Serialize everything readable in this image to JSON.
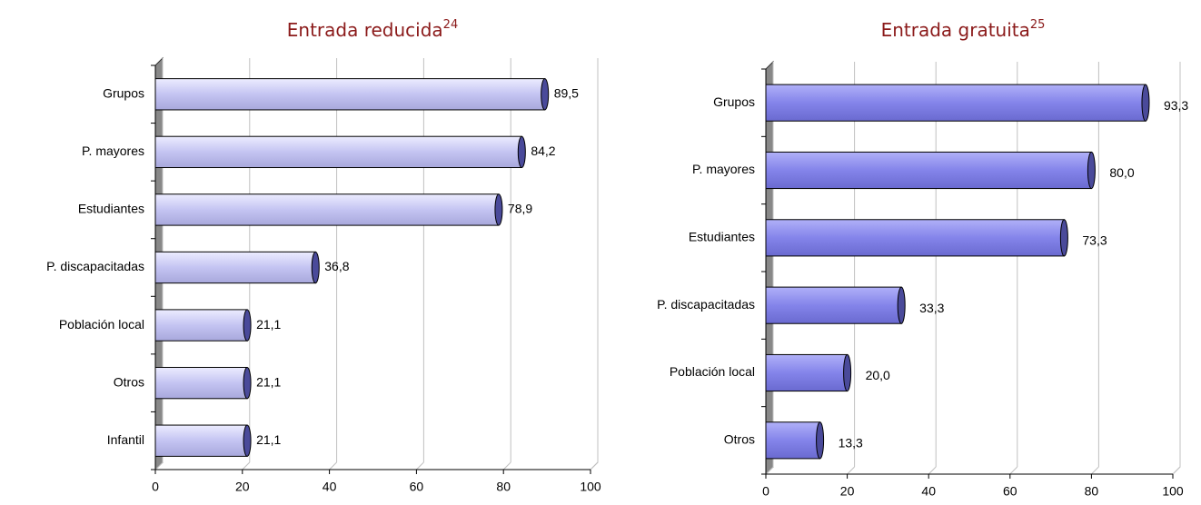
{
  "chart_data": [
    {
      "type": "bar",
      "title": "Entrada reducida",
      "title_superscript": "24",
      "categories": [
        "Grupos",
        "P. mayores",
        "Estudiantes",
        "P. discapacitadas",
        "Población local",
        "Otros",
        "Infantil"
      ],
      "values": [
        89.5,
        84.2,
        78.9,
        36.8,
        21.1,
        21.1,
        21.1
      ],
      "value_labels": [
        "89,5",
        "84,2",
        "78,9",
        "36,8",
        "21,1",
        "21,1",
        "21,1"
      ],
      "color": "#c4c4f2",
      "xlim": [
        0,
        100
      ],
      "xticks": [
        0,
        20,
        40,
        60,
        80,
        100
      ],
      "grid": true
    },
    {
      "type": "bar",
      "title": "Entrada gratuita",
      "title_superscript": "25",
      "categories": [
        "Grupos",
        "P. mayores",
        "Estudiantes",
        "P. discapacitadas",
        "Población local",
        "Otros"
      ],
      "values": [
        93.3,
        80.0,
        73.3,
        33.3,
        20.0,
        13.3
      ],
      "value_labels": [
        "93,3",
        "80,0",
        "73,3",
        "33,3",
        "20,0",
        "13,3"
      ],
      "color": "#8484ea",
      "xlim": [
        0,
        100
      ],
      "xticks": [
        0,
        20,
        40,
        60,
        80,
        100
      ],
      "grid": true
    }
  ]
}
